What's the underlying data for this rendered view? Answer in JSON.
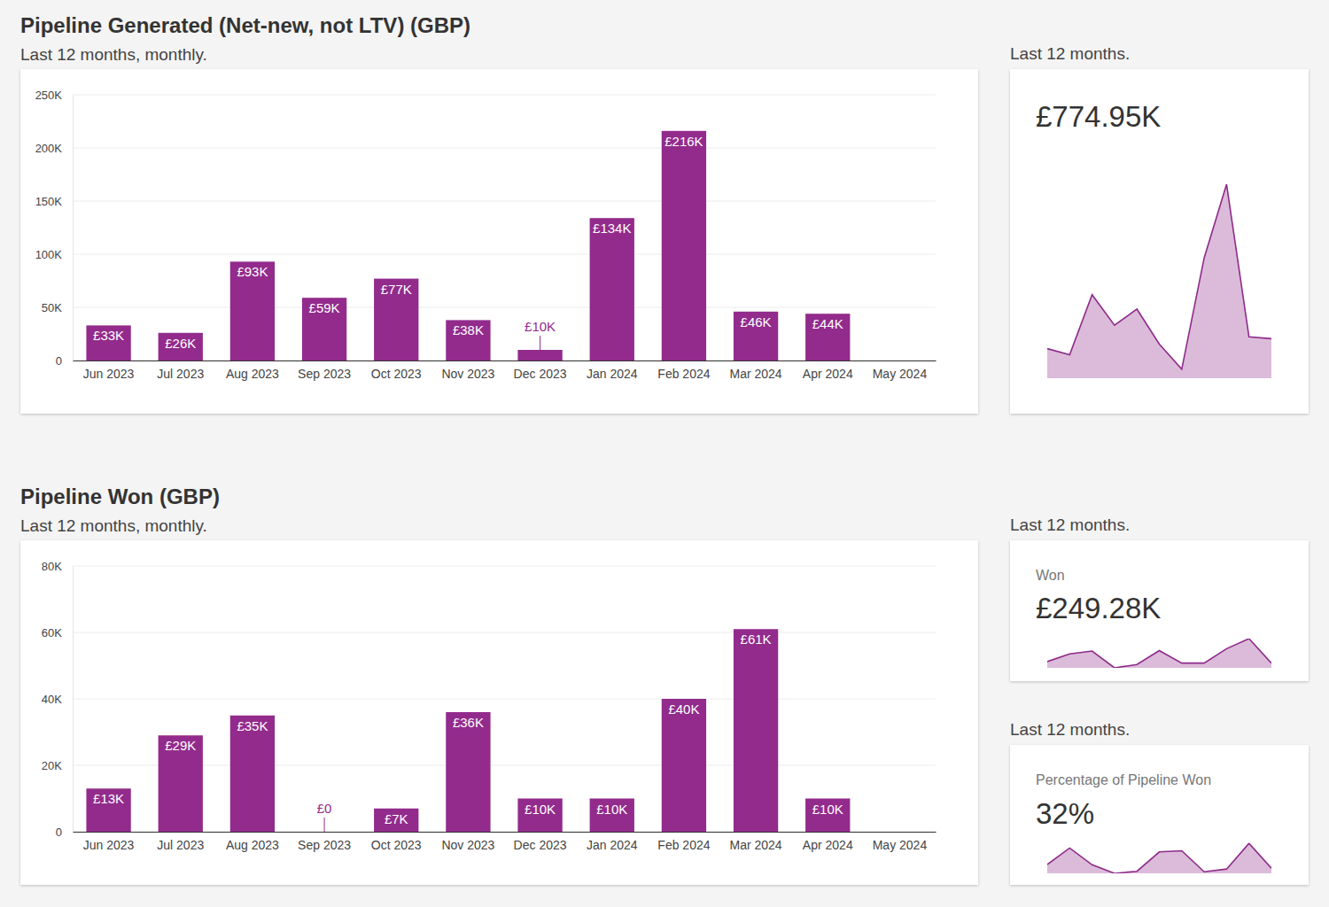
{
  "chart_data": [
    {
      "type": "bar",
      "title": "Pipeline Generated (Net-new, not LTV) (GBP)",
      "subtitle": "Last 12 months, monthly.",
      "categories": [
        "Jun 2023",
        "Jul 2023",
        "Aug 2023",
        "Sep 2023",
        "Oct 2023",
        "Nov 2023",
        "Dec 2023",
        "Jan 2024",
        "Feb 2024",
        "Mar 2024",
        "Apr 2024",
        "May 2024"
      ],
      "values": [
        33000,
        26000,
        93000,
        59000,
        77000,
        38000,
        10000,
        134000,
        216000,
        46000,
        44000,
        null
      ],
      "value_labels": [
        "£33K",
        "£26K",
        "£93K",
        "£59K",
        "£77K",
        "£38K",
        "£10K",
        "£134K",
        "£216K",
        "£46K",
        "£44K",
        null
      ],
      "color": "#922b8c",
      "ylim": [
        0,
        250000
      ],
      "yticks": [
        0,
        {
          "value": 50000,
          "label": "50K"
        },
        {
          "value": 100000,
          "label": "100K"
        },
        {
          "value": 150000,
          "label": "150K"
        },
        {
          "value": 200000,
          "label": "200K"
        },
        {
          "value": 250000,
          "label": "250K"
        }
      ],
      "grid": true,
      "data_labels": true
    },
    {
      "type": "area",
      "subtitle": "Last 12 months.",
      "annotations": [
        "£774.95K"
      ],
      "categories": [
        null,
        null,
        null,
        null,
        null,
        null,
        null,
        null,
        null,
        null,
        null
      ],
      "values": [
        33000,
        26000,
        93000,
        59000,
        77000,
        38000,
        10000,
        134000,
        216000,
        46000,
        44000
      ],
      "color": "#8e2a8a",
      "ylim": [
        0,
        220000
      ],
      "tick_labels": false
    },
    {
      "type": "bar",
      "title": "Pipeline Won (GBP)",
      "subtitle": "Last 12 months, monthly.",
      "categories": [
        "Jun 2023",
        "Jul 2023",
        "Aug 2023",
        "Sep 2023",
        "Oct 2023",
        "Nov 2023",
        "Dec 2023",
        "Jan 2024",
        "Feb 2024",
        "Mar 2024",
        "Apr 2024",
        "May 2024"
      ],
      "values": [
        13000,
        29000,
        35000,
        0,
        7000,
        36000,
        10000,
        10000,
        40000,
        61000,
        10000,
        null
      ],
      "value_labels": [
        "£13K",
        "£29K",
        "£35K",
        "£0",
        "£7K",
        "£36K",
        "£10K",
        "£10K",
        "£40K",
        "£61K",
        "£10K",
        null
      ],
      "color": "#922b8c",
      "ylim": [
        0,
        80000
      ],
      "yticks": [
        0,
        {
          "value": 20000,
          "label": "20K"
        },
        {
          "value": 40000,
          "label": "40K"
        },
        {
          "value": 60000,
          "label": "60K"
        },
        {
          "value": 80000,
          "label": "80K"
        }
      ],
      "grid": true,
      "data_labels": true
    },
    {
      "type": "area",
      "subtitle": "Last 12 months.",
      "title": "Won",
      "annotations": [
        "£249.28K"
      ],
      "categories": [
        null,
        null,
        null,
        null,
        null,
        null,
        null,
        null,
        null,
        null,
        null
      ],
      "values": [
        13000,
        29000,
        35000,
        0,
        7000,
        36000,
        10000,
        10000,
        40000,
        61000,
        10000
      ],
      "color": "#8e2a8a",
      "ylim": [
        0,
        61000
      ],
      "tick_labels": false
    },
    {
      "type": "area",
      "subtitle": "Last 12 months.",
      "title": "Percentage of Pipeline Won",
      "annotations": [
        "32%"
      ],
      "categories": [
        null,
        null,
        null,
        null,
        null,
        null,
        null,
        null,
        null,
        null,
        null
      ],
      "values": [
        39,
        112,
        38,
        0,
        9,
        95,
        100,
        7,
        19,
        133,
        23
      ],
      "color": "#8e2a8a",
      "ylim": [
        0,
        135
      ],
      "tick_labels": false
    }
  ]
}
